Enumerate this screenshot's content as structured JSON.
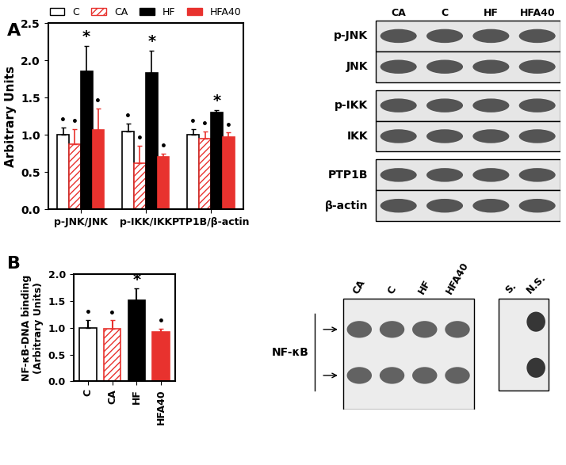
{
  "chart_data": [
    {
      "type": "bar",
      "y_label": "Arbitrary Units",
      "categories": [
        "p-JNK/JNK",
        "p-IKK/IKK",
        "PTP1B/β-actin"
      ],
      "series": [
        {
          "name": "C",
          "color": "#ffffff",
          "values": [
            1.0,
            1.05,
            1.0
          ],
          "errors": [
            0.1,
            0.1,
            0.08
          ],
          "significance": [
            "•",
            "•",
            "•"
          ]
        },
        {
          "name": "CA",
          "color": "#e8322e",
          "values": [
            0.88,
            0.62,
            0.95
          ],
          "errors": [
            0.2,
            0.23,
            0.1
          ],
          "significance": [
            "•",
            "•",
            "•"
          ]
        },
        {
          "name": "HF",
          "color": "#000000",
          "values": [
            1.85,
            1.83,
            1.3
          ],
          "errors": [
            0.35,
            0.3,
            0.03
          ],
          "significance": [
            "*",
            "*",
            "*"
          ]
        },
        {
          "name": "HFA40",
          "color": "#e8322e",
          "values": [
            1.07,
            0.7,
            0.97
          ],
          "errors": [
            0.28,
            0.05,
            0.06
          ],
          "significance": [
            "•",
            "•",
            "•"
          ]
        }
      ],
      "ylim": [
        0,
        2.5
      ],
      "yticks": [
        {
          "value": 0,
          "label": "0.0"
        },
        {
          "value": 0.5,
          "label": "0.5"
        },
        {
          "value": 1.0,
          "label": "1.0"
        },
        {
          "value": 1.5,
          "label": "1.5"
        },
        {
          "value": 2.0,
          "label": "2.0"
        },
        {
          "value": 2.5,
          "label": "2.5"
        }
      ],
      "legend": "lower center"
    },
    {
      "type": "bar",
      "y_label": "NF-κB-DNA binding\n(Arbitrary Units)",
      "categories": [
        "C",
        "CA",
        "HF",
        "HFA40"
      ],
      "values": [
        1.0,
        0.99,
        1.52,
        0.92
      ],
      "errors": [
        0.15,
        0.15,
        0.22,
        0.07
      ],
      "significance": [
        "•",
        "•",
        "*",
        "•"
      ],
      "colors": [
        "#ffffff",
        "#e8322e",
        "#000000",
        "#e8322e"
      ],
      "ylim": [
        0,
        2.0
      ],
      "yticks": [
        {
          "value": 0,
          "label": "0.0"
        },
        {
          "value": 0.5,
          "label": "0.5"
        },
        {
          "value": 1.0,
          "label": "1.0"
        },
        {
          "value": 1.5,
          "label": "1.5"
        },
        {
          "value": 2.0,
          "label": "2.0"
        }
      ]
    }
  ],
  "panels": [
    "A",
    "B"
  ],
  "western_blot": {
    "lanes": [
      "CA",
      "C",
      "HF",
      "HFA40"
    ],
    "rows": [
      [
        "p-JNK",
        "JNK"
      ],
      [
        "p-IKK",
        "IKK"
      ],
      [
        "PTP1B",
        "β-actin"
      ]
    ]
  },
  "emsa": {
    "lanes": [
      "CA",
      "C",
      "HF",
      "HFA40"
    ],
    "label": "NF-κB",
    "controls": [
      "S.",
      "N.S."
    ]
  }
}
